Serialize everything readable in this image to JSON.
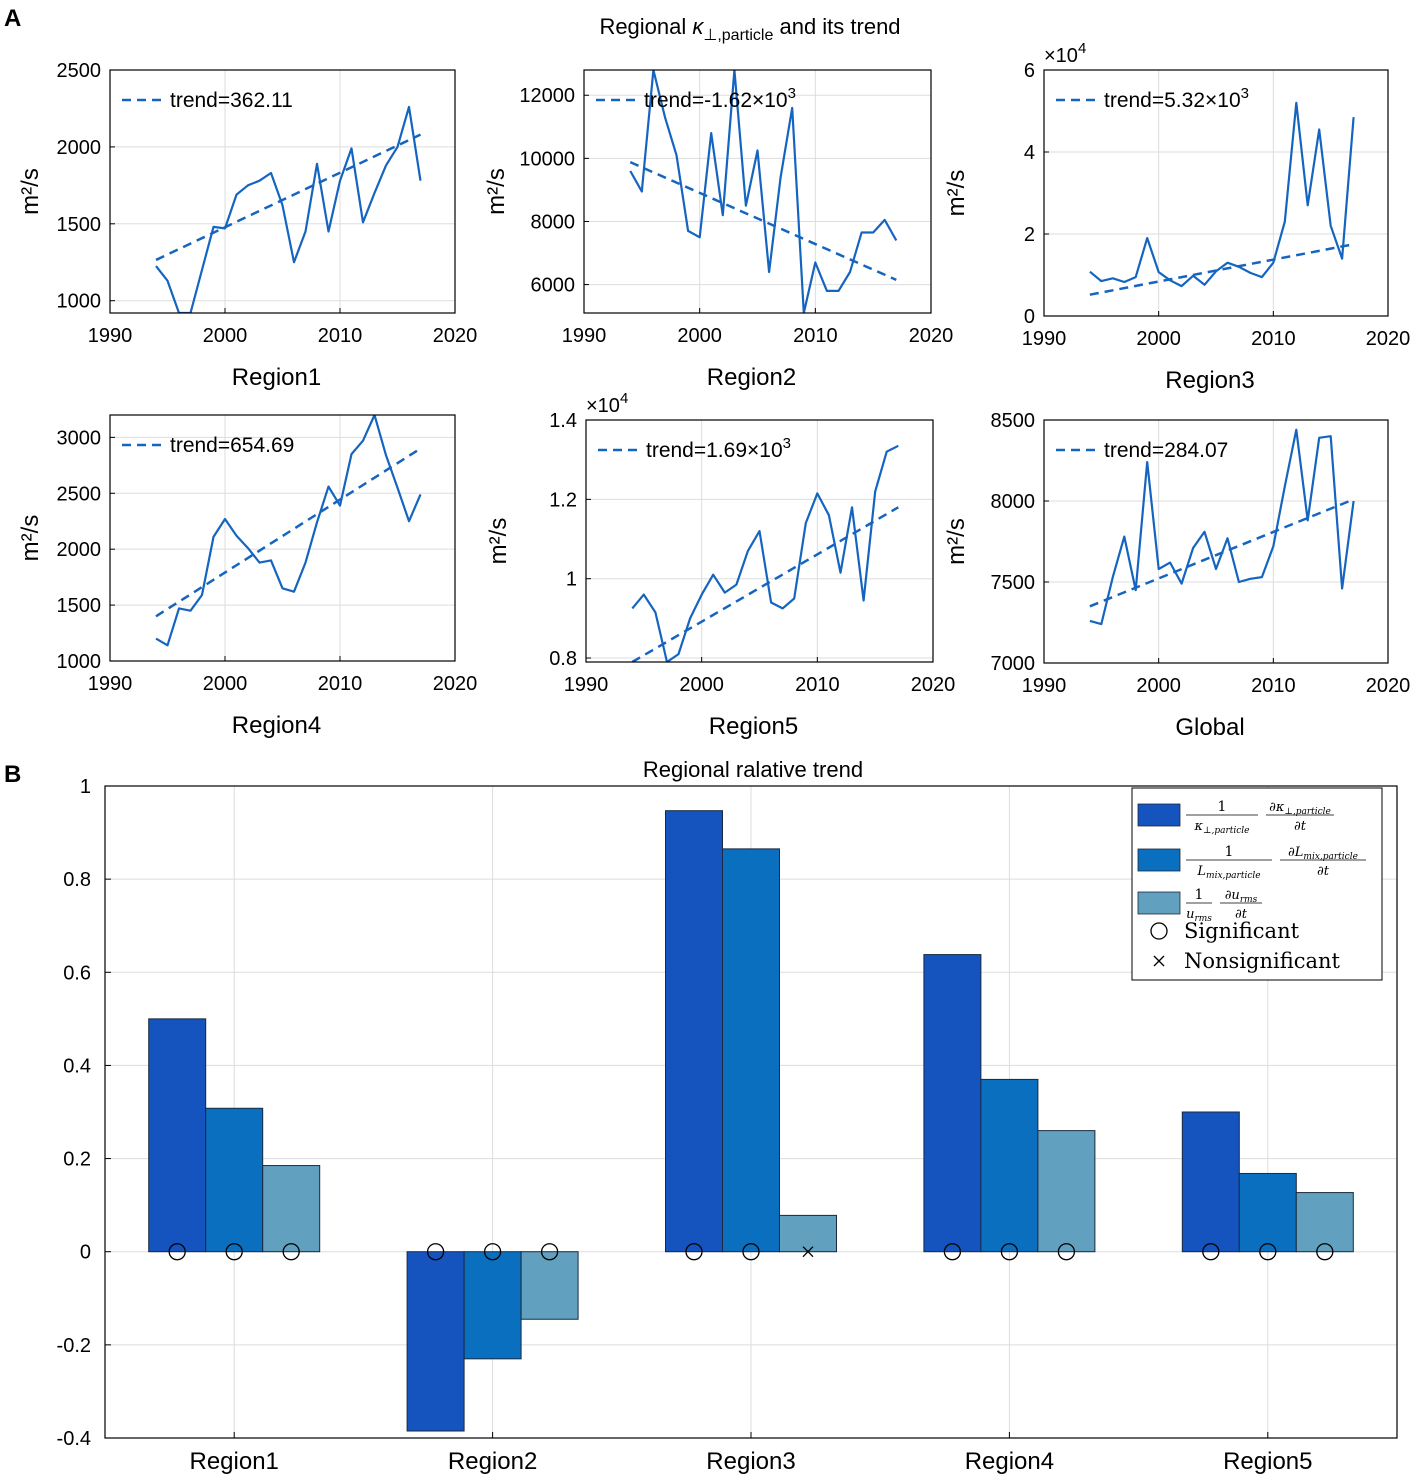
{
  "figure": {
    "label_a": "A",
    "label_b": "B",
    "title_a_prefix": "Regional ",
    "title_a_kappa": "κ",
    "title_a_sub": "⊥,particle",
    "title_a_suffix": " and its trend",
    "colors": {
      "line": "#1565c0",
      "bar1": "#1553bf",
      "bar2": "#0b6fbf",
      "bar3": "#62a0bf",
      "grid": "#dddddd",
      "axis": "#000000"
    }
  },
  "chart_data": [
    {
      "type": "line",
      "id": "region1",
      "xlabel": "Region1",
      "ylabel": "m²/s",
      "xlim": [
        1990,
        2020
      ],
      "ylim": [
        920,
        2500
      ],
      "xticks": [
        1990,
        2000,
        2010,
        2020
      ],
      "xtick_labels": [
        "1990",
        "2000",
        "2010",
        "2020"
      ],
      "yticks": [
        1000,
        1500,
        2000,
        2500
      ],
      "ytick_labels": [
        "1000",
        "1500",
        "2000",
        "2500"
      ],
      "multiplier": "",
      "x": [
        1994,
        1995,
        1996,
        1997,
        1998,
        1999,
        2000,
        2001,
        2002,
        2003,
        2004,
        2005,
        2006,
        2007,
        2008,
        2009,
        2010,
        2011,
        2012,
        2013,
        2014,
        2015,
        2016,
        2017
      ],
      "values": [
        1225,
        1130,
        920,
        920,
        1200,
        1480,
        1470,
        1690,
        1750,
        1780,
        1830,
        1620,
        1250,
        1450,
        1890,
        1450,
        1780,
        1990,
        1510,
        1700,
        1880,
        2000,
        2260,
        1780
      ],
      "trend": [
        1265,
        2080
      ],
      "legend": "trend=362.11"
    },
    {
      "type": "line",
      "id": "region2",
      "xlabel": "Region2",
      "ylabel": "m²/s",
      "xlim": [
        1990,
        2020
      ],
      "ylim": [
        5100,
        12800
      ],
      "xticks": [
        1990,
        2000,
        2010,
        2020
      ],
      "xtick_labels": [
        "1990",
        "2000",
        "2010",
        "2020"
      ],
      "yticks": [
        6000,
        8000,
        10000,
        12000
      ],
      "ytick_labels": [
        "6000",
        "8000",
        "10000",
        "12000"
      ],
      "multiplier": "",
      "x": [
        1994,
        1995,
        1996,
        1997,
        1998,
        1999,
        2000,
        2001,
        2002,
        2003,
        2004,
        2005,
        2006,
        2007,
        2008,
        2009,
        2010,
        2011,
        2012,
        2013,
        2014,
        2015,
        2016,
        2017
      ],
      "values": [
        9600,
        8950,
        12800,
        11300,
        10100,
        7700,
        7500,
        10800,
        8200,
        12800,
        8500,
        10250,
        6400,
        9400,
        11600,
        5100,
        6700,
        5800,
        5800,
        6400,
        7650,
        7650,
        8050,
        7400
      ],
      "trend": [
        9880,
        6150
      ],
      "legend": "trend=-1.62×10",
      "legend_exp": "3"
    },
    {
      "type": "line",
      "id": "region3",
      "xlabel": "Region3",
      "ylabel": "m²/s",
      "xlim": [
        1990,
        2020
      ],
      "ylim": [
        0,
        6
      ],
      "xticks": [
        1990,
        2000,
        2010,
        2020
      ],
      "xtick_labels": [
        "1990",
        "2000",
        "2010",
        "2020"
      ],
      "yticks": [
        0,
        2,
        4,
        6
      ],
      "ytick_labels": [
        "0",
        "2",
        "4",
        "6"
      ],
      "multiplier": "×10",
      "multiplier_exp": "4",
      "x": [
        1994,
        1995,
        1996,
        1997,
        1998,
        1999,
        2000,
        2001,
        2002,
        2003,
        2004,
        2005,
        2006,
        2007,
        2008,
        2009,
        2010,
        2011,
        2012,
        2013,
        2014,
        2015,
        2016,
        2017
      ],
      "values": [
        1.08,
        0.85,
        0.92,
        0.83,
        0.95,
        1.9,
        1.07,
        0.87,
        0.73,
        0.98,
        0.76,
        1.09,
        1.3,
        1.2,
        1.05,
        0.95,
        1.3,
        2.3,
        5.2,
        2.7,
        4.55,
        2.2,
        1.4,
        4.85
      ],
      "trend": [
        0.52,
        1.75
      ],
      "legend": "trend=5.32×10",
      "legend_exp": "3"
    },
    {
      "type": "line",
      "id": "region4",
      "xlabel": "Region4",
      "ylabel": "m²/s",
      "xlim": [
        1990,
        2020
      ],
      "ylim": [
        1000,
        3200
      ],
      "xticks": [
        1990,
        2000,
        2010,
        2020
      ],
      "xtick_labels": [
        "1990",
        "2000",
        "2010",
        "2020"
      ],
      "yticks": [
        1000,
        1500,
        2000,
        2500,
        3000
      ],
      "ytick_labels": [
        "1000",
        "1500",
        "2000",
        "2500",
        "3000"
      ],
      "multiplier": "",
      "x": [
        1994,
        1995,
        1996,
        1997,
        1998,
        1999,
        2000,
        2001,
        2002,
        2003,
        2004,
        2005,
        2006,
        2007,
        2008,
        2009,
        2010,
        2011,
        2012,
        2013,
        2014,
        2015,
        2016,
        2017
      ],
      "values": [
        1200,
        1140,
        1470,
        1450,
        1590,
        2110,
        2270,
        2120,
        2010,
        1880,
        1900,
        1650,
        1620,
        1880,
        2240,
        2560,
        2390,
        2850,
        2970,
        3200,
        2840,
        2550,
        2250,
        2490
      ],
      "trend": [
        1400,
        2900
      ],
      "legend": "trend=654.69"
    },
    {
      "type": "line",
      "id": "region5",
      "xlabel": "Region5",
      "ylabel": "m²/s",
      "xlim": [
        1990,
        2020
      ],
      "ylim": [
        0.79,
        1.4
      ],
      "xticks": [
        1990,
        2000,
        2010,
        2020
      ],
      "xtick_labels": [
        "1990",
        "2000",
        "2010",
        "2020"
      ],
      "yticks": [
        0.8,
        1.0,
        1.2,
        1.4
      ],
      "ytick_labels": [
        "0.8",
        "1",
        "1.2",
        "1.4"
      ],
      "multiplier": "×10",
      "multiplier_exp": "4",
      "x": [
        1994,
        1995,
        1996,
        1997,
        1998,
        1999,
        2000,
        2001,
        2002,
        2003,
        2004,
        2005,
        2006,
        2007,
        2008,
        2009,
        2010,
        2011,
        2012,
        2013,
        2014,
        2015,
        2016,
        2017
      ],
      "values": [
        0.925,
        0.96,
        0.915,
        0.79,
        0.81,
        0.9,
        0.96,
        1.01,
        0.965,
        0.985,
        1.07,
        1.12,
        0.94,
        0.925,
        0.95,
        1.14,
        1.215,
        1.16,
        1.015,
        1.18,
        0.945,
        1.22,
        1.32,
        1.335
      ],
      "trend": [
        0.79,
        1.18
      ],
      "legend": "trend=1.69×10",
      "legend_exp": "3"
    },
    {
      "type": "line",
      "id": "global",
      "xlabel": "Global",
      "ylabel": "m²/s",
      "xlim": [
        1990,
        2020
      ],
      "ylim": [
        7000,
        8500
      ],
      "xticks": [
        1990,
        2000,
        2010,
        2020
      ],
      "xtick_labels": [
        "1990",
        "2000",
        "2010",
        "2020"
      ],
      "yticks": [
        7000,
        7500,
        8000,
        8500
      ],
      "ytick_labels": [
        "7000",
        "7500",
        "8000",
        "8500"
      ],
      "multiplier": "",
      "x": [
        1994,
        1995,
        1996,
        1997,
        1998,
        1999,
        2000,
        2001,
        2002,
        2003,
        2004,
        2005,
        2006,
        2007,
        2008,
        2009,
        2010,
        2011,
        2012,
        2013,
        2014,
        2015,
        2016,
        2017
      ],
      "values": [
        7260,
        7240,
        7530,
        7780,
        7450,
        8240,
        7580,
        7620,
        7490,
        7710,
        7810,
        7580,
        7770,
        7500,
        7520,
        7530,
        7720,
        8090,
        8440,
        7880,
        8390,
        8400,
        7460,
        8000
      ],
      "trend": [
        7350,
        8010
      ],
      "legend": "trend=284.07"
    },
    {
      "type": "bar",
      "id": "relative-trend",
      "title": "Regional ralative trend",
      "categories": [
        "Region1",
        "Region2",
        "Region3",
        "Region4",
        "Region5"
      ],
      "ylim": [
        -0.4,
        1
      ],
      "yticks": [
        -0.4,
        -0.2,
        0,
        0.2,
        0.4,
        0.6,
        0.8,
        1
      ],
      "ytick_labels": [
        "-0.4",
        "-0.2",
        "0",
        "0.2",
        "0.4",
        "0.6",
        "0.8",
        "1"
      ],
      "series": [
        {
          "name": "kappa",
          "values": [
            0.5,
            -0.385,
            0.947,
            0.638,
            0.3
          ],
          "significant": [
            true,
            true,
            true,
            true,
            true
          ]
        },
        {
          "name": "Lmix",
          "values": [
            0.308,
            -0.23,
            0.865,
            0.37,
            0.168
          ],
          "significant": [
            true,
            true,
            true,
            true,
            true
          ]
        },
        {
          "name": "urms",
          "values": [
            0.185,
            -0.145,
            0.078,
            0.26,
            0.127
          ],
          "significant": [
            true,
            true,
            false,
            true,
            true
          ]
        }
      ],
      "legend": {
        "one": "1",
        "s1_den": "κ",
        "s1_den_sub": "⊥,particle",
        "s1_num": "∂κ",
        "s1_num_sub": "⊥,particle",
        "s2_den": "L",
        "s2_den_sub": "mix,particle",
        "s2_num": "∂L",
        "s2_num_sub": "mix,particle",
        "s3_den": "u",
        "s3_den_sub": "rms",
        "s3_num": "∂u",
        "s3_num_sub": "rms",
        "dt": "∂t",
        "significant": "Significant",
        "nonsignificant": "Nonsignificant"
      }
    }
  ]
}
